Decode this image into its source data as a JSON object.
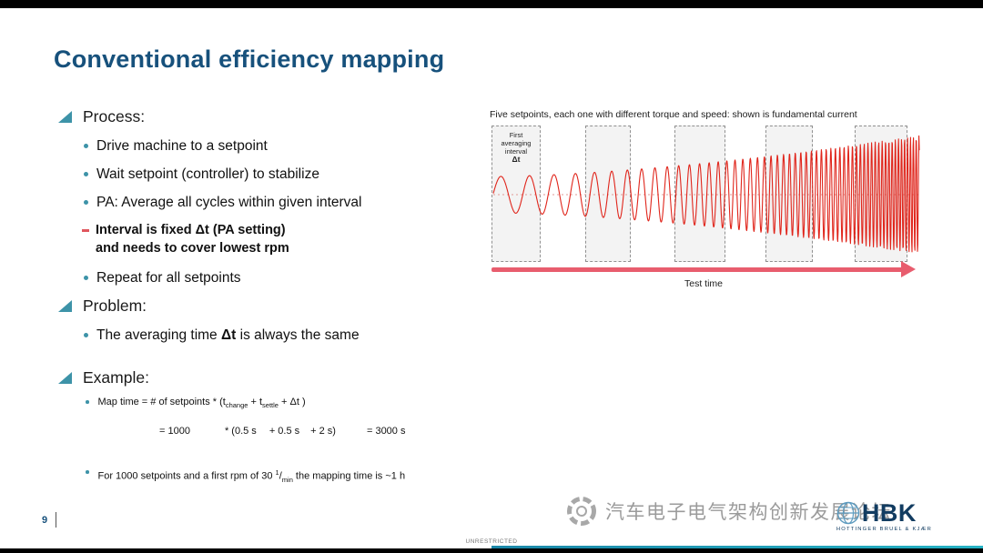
{
  "title": "Conventional efficiency mapping",
  "process": {
    "heading": "Process:",
    "items": [
      "Drive machine to a setpoint",
      "Wait setpoint (controller) to stabilize",
      "PA: Average all cycles within given interval",
      "Repeat for all setpoints"
    ],
    "sub_bold": {
      "line1": "Interval is fixed Δt (PA setting)",
      "line2": "and needs to cover lowest rpm"
    }
  },
  "problem": {
    "heading": "Problem:",
    "item_prefix": "The averaging time ",
    "item_bold": "Δt",
    "item_suffix": " is always the same"
  },
  "example": {
    "heading": "Example:",
    "formula": {
      "p1": "Map time = # of setpoints * (t",
      "sub1": "change",
      "p2": " + t",
      "sub2": "settle",
      "p3": " + Δt )"
    },
    "values": {
      "v1": "= 1000",
      "v2": "* (0.5 s",
      "v3": "+ 0.5 s",
      "v4": "+ 2 s)",
      "v5": "= 3000 s"
    },
    "note": {
      "p1": "For 1000 setpoints and a first rpm of 30 ",
      "sup": "1",
      "slash": "/",
      "sub": "min",
      "p2": " the mapping time is ~1 h"
    }
  },
  "diagram": {
    "caption": "Five setpoints, each one with different torque and speed: shown is fundamental current",
    "interval_label": {
      "l1": "First",
      "l2": "averaging",
      "l3": "interval",
      "l4": "Δt"
    },
    "axis_label": "Test time",
    "wave": {
      "f0": 0.028,
      "f1": 0.33,
      "amp0": 20,
      "amp1": 65
    }
  },
  "footer": {
    "page_number": "9",
    "classification": "UNRESTRICTED",
    "watermark": "汽车电子电气架构创新发展论坛",
    "logo": "HBK",
    "logo_tagline": "HOTTINGER BRUEL & KJÆR"
  },
  "colors": {
    "title": "#17517c",
    "accent": "#3d93a8",
    "wave": "#e0251b",
    "pink": "#e85d6e"
  }
}
